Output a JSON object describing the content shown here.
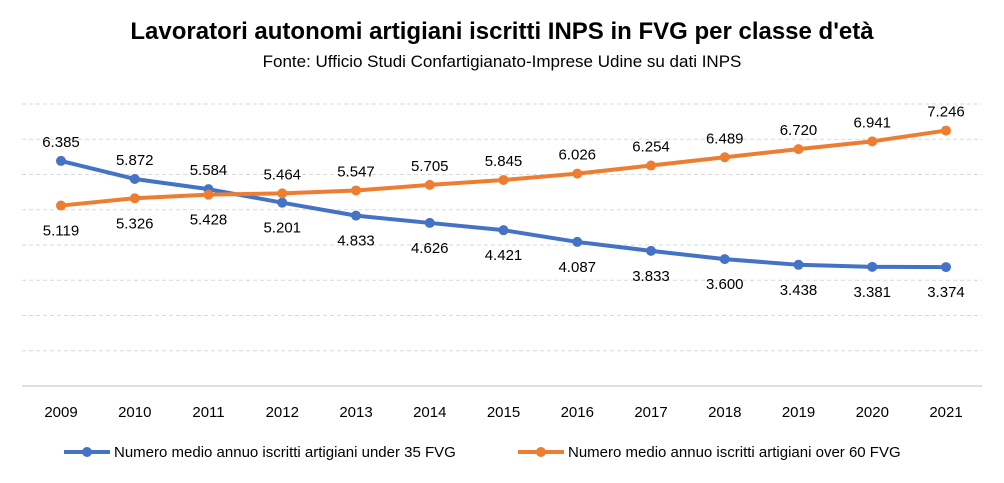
{
  "chart_data": {
    "type": "line",
    "title": "Lavoratori autonomi artigiani iscritti INPS in FVG per classe d'età",
    "subtitle": "Fonte: Ufficio Studi Confartigianato-Imprese Udine su dati INPS",
    "categories": [
      "2009",
      "2010",
      "2011",
      "2012",
      "2013",
      "2014",
      "2015",
      "2016",
      "2017",
      "2018",
      "2019",
      "2020",
      "2021"
    ],
    "series": [
      {
        "name": "Numero medio annuo iscritti artigiani under 35 FVG",
        "color": "#4472c4",
        "values": [
          6385,
          5872,
          5584,
          5201,
          4833,
          4626,
          4421,
          4087,
          3833,
          3600,
          3438,
          3381,
          3374
        ],
        "labels": [
          "6.385",
          "5.872",
          "5.584",
          "5.201",
          "4.833",
          "4.626",
          "4.421",
          "4.087",
          "3.833",
          "3.600",
          "3.438",
          "3.381",
          "3.374"
        ]
      },
      {
        "name": "Numero medio annuo iscritti artigiani over 60 FVG",
        "color": "#ed7d31",
        "values": [
          5119,
          5326,
          5428,
          5464,
          5547,
          5705,
          5845,
          6026,
          6254,
          6489,
          6720,
          6941,
          7246
        ],
        "labels": [
          "5.119",
          "5.326",
          "5.428",
          "5.464",
          "5.547",
          "5.705",
          "5.845",
          "6.026",
          "6.254",
          "6.489",
          "6.720",
          "6.941",
          "7.246"
        ]
      }
    ],
    "ylim": [
      0,
      8000
    ],
    "grid": true,
    "legend_position": "bottom"
  }
}
